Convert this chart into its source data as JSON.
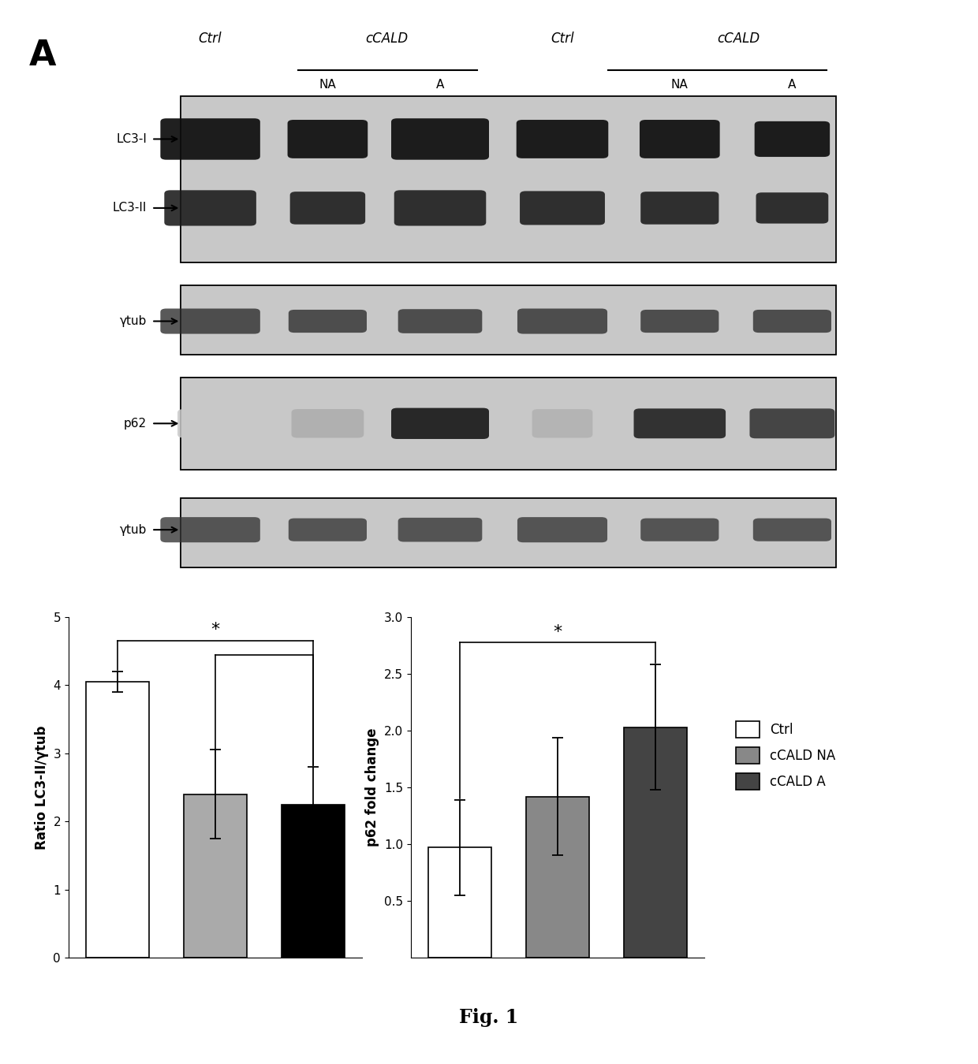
{
  "panel_label": "A",
  "fig_label": "Fig. 1",
  "bar1_categories": [
    "Ctrl",
    "cCALD NA",
    "cCALD A"
  ],
  "bar1_values": [
    4.05,
    2.4,
    2.25
  ],
  "bar1_errors": [
    0.15,
    0.65,
    0.55
  ],
  "bar1_colors": [
    "white",
    "#aaaaaa",
    "black"
  ],
  "bar1_ylabel": "Ratio LC3-II/γtub",
  "bar1_ylim": [
    0,
    5
  ],
  "bar1_yticks": [
    0,
    1,
    2,
    3,
    4,
    5
  ],
  "bar2_categories": [
    "Ctrl",
    "cCALD NA",
    "cCALD A"
  ],
  "bar2_values": [
    0.97,
    1.42,
    2.03
  ],
  "bar2_errors": [
    0.42,
    0.52,
    0.55
  ],
  "bar2_colors": [
    "white",
    "#888888",
    "#444444"
  ],
  "bar2_ylabel": "p62 fold change",
  "bar2_ylim": [
    0,
    3.0
  ],
  "bar2_yticks": [
    0.5,
    1.0,
    1.5,
    2.0,
    2.5,
    3.0
  ],
  "legend_labels": [
    "Ctrl",
    "cCALD NA",
    "cCALD A"
  ],
  "legend_colors": [
    "white",
    "#888888",
    "#444444"
  ],
  "wb_panel_color": "#c8c8c8",
  "wb_band_dark": "#111111",
  "wb_band_mid": "#555555",
  "wb_band_light": "#aaaaaa",
  "background_color": "white"
}
